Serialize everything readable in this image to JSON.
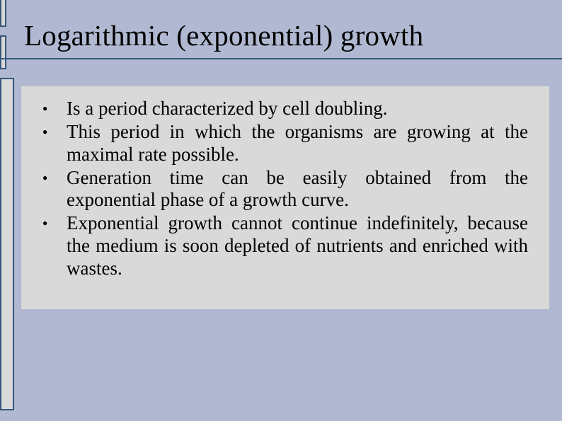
{
  "colors": {
    "slide_background": "#b0b9d1",
    "content_background": "#d9d9d9",
    "accent_border": "#35567a",
    "text": "#000000"
  },
  "typography": {
    "family": "Times New Roman",
    "title_fontsize": 41,
    "body_fontsize": 27,
    "title_weight": "normal"
  },
  "title": "Logarithmic (exponential) growth",
  "bullets": [
    "Is a period characterized by cell doubling.",
    "This period in which the organisms are growing at the maximal rate possible.",
    "Generation time can be easily obtained from the exponential phase of a growth curve.",
    "Exponential growth cannot continue indefinitely, because the medium is soon depleted of nutrients and enriched with wastes."
  ]
}
